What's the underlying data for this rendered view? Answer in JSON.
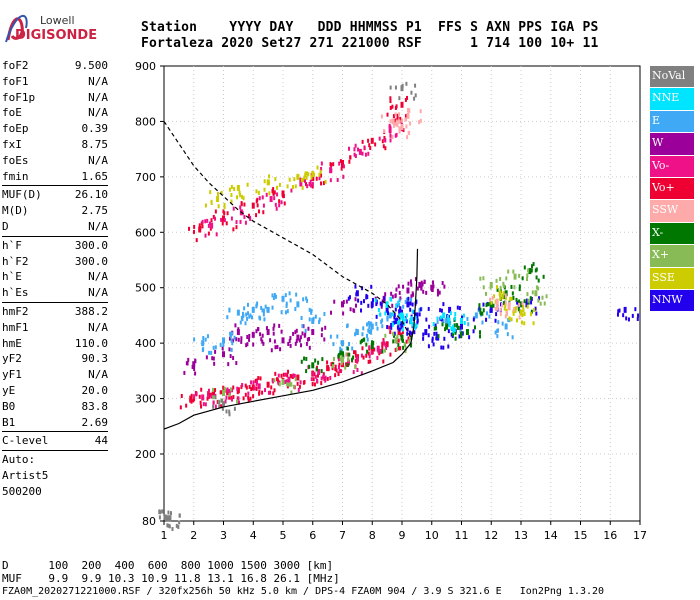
{
  "logo": {
    "line1": "Lowell",
    "line2": "DIGISONDE"
  },
  "header": {
    "row1": "Station    YYYY DAY   DDD HHMMSS P1  FFS S AXN PPS IGA PS",
    "row2": "Fortaleza 2020 Set27 271 221000 RSF      1 714 100 10+ 11"
  },
  "params": [
    {
      "k": "foF2",
      "v": "9.500"
    },
    {
      "k": "foF1",
      "v": "N/A"
    },
    {
      "k": "foF1p",
      "v": "N/A"
    },
    {
      "k": "foE",
      "v": "N/A"
    },
    {
      "k": "foEp",
      "v": "0.39"
    },
    {
      "k": "fxI",
      "v": "8.75"
    },
    {
      "k": "foEs",
      "v": "N/A"
    },
    {
      "k": "fmin",
      "v": "1.65"
    },
    {
      "sep": true
    },
    {
      "k": "MUF(D)",
      "v": "26.10"
    },
    {
      "k": "M(D)",
      "v": "2.75"
    },
    {
      "k": "D",
      "v": "N/A"
    },
    {
      "sep": true
    },
    {
      "k": "h`F",
      "v": "300.0"
    },
    {
      "k": "h`F2",
      "v": "300.0"
    },
    {
      "k": "h`E",
      "v": "N/A"
    },
    {
      "k": "h`Es",
      "v": "N/A"
    },
    {
      "sep": true
    },
    {
      "k": "hmF2",
      "v": "388.2"
    },
    {
      "k": "hmF1",
      "v": "N/A"
    },
    {
      "k": "hmE",
      "v": "110.0"
    },
    {
      "k": "yF2",
      "v": "90.3"
    },
    {
      "k": "yF1",
      "v": "N/A"
    },
    {
      "k": "yE",
      "v": "20.0"
    },
    {
      "k": "B0",
      "v": "83.8"
    },
    {
      "k": "B1",
      "v": "2.69"
    },
    {
      "sep": true
    },
    {
      "k": "C-level",
      "v": "44"
    },
    {
      "sep": true
    },
    {
      "k": "Auto:",
      "v": ""
    },
    {
      "k": "Artist5",
      "v": ""
    },
    {
      "k": "500200",
      "v": ""
    }
  ],
  "legend": [
    {
      "label": "NoVal",
      "color": "#808080"
    },
    {
      "label": "NNE",
      "color": "#00e5ff"
    },
    {
      "label": "E",
      "color": "#3fa9f5"
    },
    {
      "label": "W",
      "color": "#9b009b"
    },
    {
      "label": "Vo-",
      "color": "#ee1188"
    },
    {
      "label": "Vo+",
      "color": "#ee0033"
    },
    {
      "label": "SSW",
      "color": "#ffaaaa"
    },
    {
      "label": "X-",
      "color": "#007700"
    },
    {
      "label": "X+",
      "color": "#88bb55"
    },
    {
      "label": "SSE",
      "color": "#cccc00"
    },
    {
      "label": "NNW",
      "color": "#2200ee"
    }
  ],
  "bottom": {
    "line1": "D      100  200  400  600  800 1000 1500 3000 [km]",
    "line2": "MUF    9.9  9.9 10.3 10.9 11.8 13.1 16.8 26.1 [MHz]",
    "line3": "FZA0M_2020271221000.RSF / 320fx256h 50 kHz 5.0 km / DPS-4 FZA0M 904 / 3.9 S 321.6 E   Ion2Png 1.3.20"
  },
  "chart_data": {
    "type": "scatter",
    "title": "",
    "xlabel": "",
    "ylabel": "",
    "xlim": [
      1,
      17
    ],
    "ylim": [
      80,
      900
    ],
    "xticks": [
      1,
      2,
      3,
      4,
      5,
      6,
      7,
      8,
      9,
      10,
      11,
      12,
      13,
      14,
      15,
      16,
      17
    ],
    "yticks": [
      80,
      200,
      300,
      400,
      500,
      600,
      700,
      800,
      900
    ],
    "grid": true,
    "legend_position": "right",
    "series": [
      {
        "name": "Vo+",
        "color": "#ee0033",
        "points": [
          [
            1.9,
            300
          ],
          [
            2.5,
            305
          ],
          [
            3,
            310
          ],
          [
            3.5,
            315
          ],
          [
            4,
            320
          ],
          [
            4.5,
            325
          ],
          [
            5,
            332
          ],
          [
            5.5,
            338
          ],
          [
            6,
            345
          ],
          [
            6.5,
            355
          ],
          [
            7,
            362
          ],
          [
            7.5,
            372
          ],
          [
            8,
            385
          ],
          [
            8.5,
            398
          ],
          [
            8.9,
            420
          ],
          [
            2.2,
            605
          ],
          [
            3,
            625
          ],
          [
            4,
            648
          ],
          [
            5,
            670
          ],
          [
            6,
            698
          ],
          [
            7,
            725
          ],
          [
            8,
            765
          ],
          [
            8.8,
            800
          ],
          [
            9,
            830
          ]
        ]
      },
      {
        "name": "Vo-",
        "color": "#ee1188",
        "points": [
          [
            2.3,
            302
          ],
          [
            3.2,
            312
          ],
          [
            4.2,
            322
          ],
          [
            5.2,
            334
          ],
          [
            6.2,
            348
          ],
          [
            7.2,
            365
          ],
          [
            8.2,
            390
          ],
          [
            2.6,
            612
          ],
          [
            3.6,
            636
          ],
          [
            4.6,
            660
          ],
          [
            5.6,
            688
          ],
          [
            6.6,
            712
          ],
          [
            7.6,
            745
          ],
          [
            8.6,
            785
          ]
        ]
      },
      {
        "name": "W",
        "color": "#9b009b",
        "points": [
          [
            2,
            362
          ],
          [
            3,
            380
          ],
          [
            3.5,
            420
          ],
          [
            4,
            415
          ],
          [
            4.5,
            420
          ],
          [
            5,
            405
          ],
          [
            5.5,
            410
          ],
          [
            6,
            420
          ],
          [
            7,
            470
          ],
          [
            8.4,
            480
          ],
          [
            9.2,
            495
          ],
          [
            9.6,
            505
          ],
          [
            10,
            500
          ]
        ]
      },
      {
        "name": "E",
        "color": "#3fa9f5",
        "points": [
          [
            2.3,
            400
          ],
          [
            3,
            405
          ],
          [
            3.5,
            455
          ],
          [
            4,
            460
          ],
          [
            4.5,
            460
          ],
          [
            5,
            480
          ],
          [
            5.5,
            470
          ],
          [
            6,
            440
          ],
          [
            7,
            400
          ],
          [
            7.5,
            420
          ],
          [
            8,
            430
          ],
          [
            8.6,
            450
          ],
          [
            9.2,
            470
          ],
          [
            10.5,
            440
          ],
          [
            11.5,
            450
          ],
          [
            12.5,
            430
          ]
        ]
      },
      {
        "name": "NNW",
        "color": "#2200ee",
        "points": [
          [
            7.5,
            490
          ],
          [
            8,
            470
          ],
          [
            8.5,
            460
          ],
          [
            8.8,
            440
          ],
          [
            9,
            430
          ],
          [
            9.2,
            470
          ],
          [
            9.5,
            450
          ],
          [
            9.8,
            420
          ],
          [
            10.2,
            410
          ],
          [
            10.6,
            460
          ],
          [
            11,
            430
          ],
          [
            12,
            460
          ],
          [
            13.2,
            470
          ],
          [
            16.5,
            460
          ]
        ]
      },
      {
        "name": "X-",
        "color": "#007700",
        "points": [
          [
            6,
            360
          ],
          [
            7,
            380
          ],
          [
            8,
            395
          ],
          [
            9,
            410
          ],
          [
            10.5,
            430
          ],
          [
            11.2,
            420
          ],
          [
            12,
            470
          ],
          [
            12.5,
            490
          ],
          [
            13,
            470
          ],
          [
            13.3,
            530
          ]
        ]
      },
      {
        "name": "X+",
        "color": "#88bb55",
        "points": [
          [
            3,
            310
          ],
          [
            5,
            330
          ],
          [
            7,
            370
          ],
          [
            8.8,
            405
          ],
          [
            12,
            505
          ],
          [
            12.8,
            520
          ],
          [
            13.5,
            490
          ]
        ]
      },
      {
        "name": "SSE",
        "color": "#cccc00",
        "points": [
          [
            2.8,
            660
          ],
          [
            3.5,
            680
          ],
          [
            4.5,
            690
          ],
          [
            5.5,
            700
          ],
          [
            6,
            705
          ],
          [
            12.3,
            490
          ],
          [
            12.8,
            460
          ],
          [
            13,
            455
          ]
        ]
      },
      {
        "name": "SSW",
        "color": "#ffaaaa",
        "points": [
          [
            8.7,
            800
          ],
          [
            9,
            790
          ],
          [
            9.2,
            810
          ],
          [
            12.2,
            475
          ],
          [
            12.6,
            465
          ]
        ]
      },
      {
        "name": "NNE",
        "color": "#00e5ff",
        "points": [
          [
            8.5,
            470
          ],
          [
            9,
            450
          ],
          [
            9.3,
            440
          ],
          [
            10.4,
            450
          ],
          [
            11,
            440
          ]
        ]
      },
      {
        "name": "NoVal",
        "color": "#808080",
        "points": [
          [
            1.1,
            85
          ],
          [
            1.2,
            85
          ],
          [
            9,
            860
          ],
          [
            3,
            290
          ]
        ]
      }
    ],
    "curves": [
      {
        "style": "solid",
        "points": [
          [
            1,
            245
          ],
          [
            1.5,
            255
          ],
          [
            2,
            270
          ],
          [
            3,
            285
          ],
          [
            4,
            295
          ],
          [
            5,
            305
          ],
          [
            6,
            315
          ],
          [
            7,
            330
          ],
          [
            8,
            350
          ],
          [
            8.7,
            365
          ],
          [
            9,
            380
          ],
          [
            9.3,
            400
          ],
          [
            9.4,
            430
          ],
          [
            9.45,
            470
          ],
          [
            9.5,
            520
          ],
          [
            9.52,
            570
          ]
        ]
      },
      {
        "style": "dashed",
        "points": [
          [
            1,
            800
          ],
          [
            1.5,
            760
          ],
          [
            2,
            720
          ],
          [
            2.5,
            690
          ],
          [
            3,
            665
          ],
          [
            3.5,
            640
          ],
          [
            4,
            620
          ],
          [
            4.5,
            605
          ],
          [
            5,
            590
          ],
          [
            5.5,
            575
          ],
          [
            6,
            560
          ],
          [
            6.5,
            540
          ],
          [
            7,
            520
          ],
          [
            7.5,
            505
          ],
          [
            8,
            490
          ],
          [
            8.5,
            470
          ],
          [
            9,
            440
          ],
          [
            9.3,
            410
          ]
        ]
      }
    ]
  }
}
